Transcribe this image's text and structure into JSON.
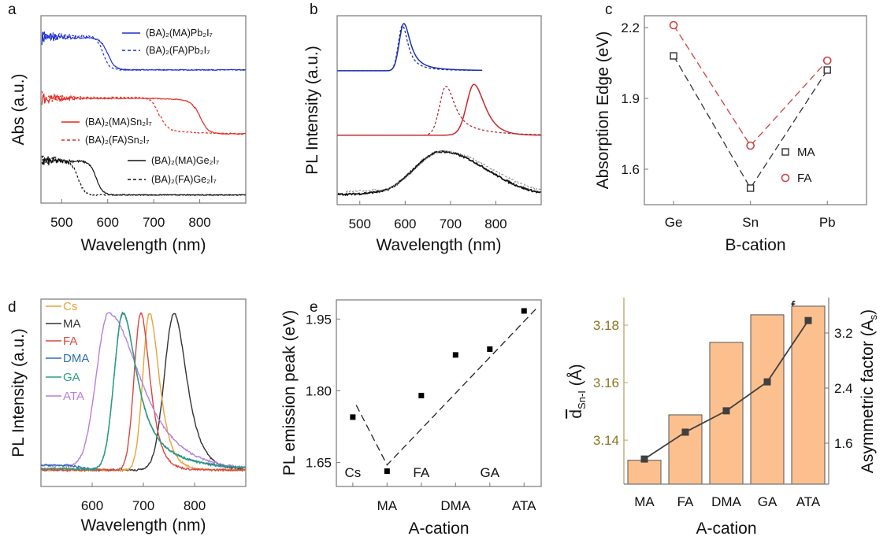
{
  "figure": {
    "panel_labels": [
      "a",
      "b",
      "c",
      "d",
      "e",
      "f"
    ]
  },
  "chart_data": [
    {
      "panel": "a",
      "type": "line",
      "xlabel": "Wavelength (nm)",
      "ylabel": "Abs (a.u.)",
      "xlim": [
        455,
        900
      ],
      "xticks": [
        500,
        600,
        700,
        800
      ],
      "series": [
        {
          "name": "(BA)₂(MA)Pb₂I₇",
          "color": "#1f2fd0",
          "style": "solid",
          "absorption_edge_nm": 600
        },
        {
          "name": "(BA)₂(FA)Pb₂I₇",
          "color": "#1f2fd0",
          "style": "dashed",
          "absorption_edge_nm": 590
        },
        {
          "name": "(BA)₂(MA)Sn₂I₇",
          "color": "#e8261e",
          "style": "solid",
          "absorption_edge_nm": 800
        },
        {
          "name": "(BA)₂(FA)Sn₂I₇",
          "color": "#e8261e",
          "style": "dashed",
          "absorption_edge_nm": 712
        },
        {
          "name": "(BA)₂(MA)Ge₂I₇",
          "color": "#111111",
          "style": "solid",
          "absorption_edge_nm": 575
        },
        {
          "name": "(BA)₂(FA)Ge₂I₇",
          "color": "#111111",
          "style": "dashed",
          "absorption_edge_nm": 535
        }
      ]
    },
    {
      "panel": "b",
      "type": "line",
      "xlabel": "Wavelength (nm)",
      "ylabel": "PL Intensity (a.u.)",
      "xlim": [
        450,
        900
      ],
      "xticks": [
        500,
        600,
        700,
        800
      ],
      "series": [
        {
          "color": "#1f2fb0",
          "style": "solid",
          "peak_nm": 597
        },
        {
          "color": "#1f2fb0",
          "style": "dashed",
          "peak_nm": 594
        },
        {
          "color": "#c8282a",
          "style": "solid",
          "peak_nm": 752
        },
        {
          "color": "#a83040",
          "style": "dashed",
          "peak_nm": 690
        },
        {
          "color": "#111111",
          "style": "solid",
          "peak_nm": 680
        },
        {
          "color": "#888888",
          "style": "dashed",
          "peak_nm": 685
        }
      ]
    },
    {
      "panel": "c",
      "type": "scatter",
      "xlabel": "B-cation",
      "ylabel": "Absorption Edge (eV)",
      "categories": [
        "Ge",
        "Sn",
        "Pb"
      ],
      "ylim": [
        1.45,
        2.25
      ],
      "yticks": [
        "1.6",
        "1.9",
        "2.2"
      ],
      "legend": "right",
      "series": [
        {
          "name": "MA",
          "values": [
            2.08,
            1.52,
            2.02
          ],
          "color": "#333333",
          "marker": "square"
        },
        {
          "name": "FA",
          "values": [
            2.21,
            1.7,
            2.06
          ],
          "color": "#d04040",
          "marker": "circle"
        }
      ]
    },
    {
      "panel": "d",
      "type": "line",
      "xlabel": "Wavelength (nm)",
      "ylabel": "PL Intensity (a.u.)",
      "xlim": [
        500,
        900
      ],
      "xticks": [
        600,
        700,
        800
      ],
      "legend": "top-left",
      "series": [
        {
          "name": "Cs",
          "color": "#e8a33a",
          "peak_nm": 712
        },
        {
          "name": "MA",
          "color": "#333333",
          "peak_nm": 760
        },
        {
          "name": "FA",
          "color": "#d9463f",
          "peak_nm": 695
        },
        {
          "name": "DMA",
          "color": "#2f6fb5",
          "peak_nm": 660
        },
        {
          "name": "GA",
          "color": "#2aa07a",
          "peak_nm": 660
        },
        {
          "name": "ATA",
          "color": "#b77ee0",
          "peak_nm": 632
        }
      ]
    },
    {
      "panel": "e",
      "type": "scatter",
      "xlabel": "A-cation",
      "ylabel": "PL emission peak (eV)",
      "categories": [
        "Cs",
        "MA",
        "FA",
        "DMA",
        "GA",
        "ATA"
      ],
      "values": [
        1.745,
        1.632,
        1.79,
        1.875,
        1.887,
        1.967
      ],
      "ylim": [
        1.6,
        1.99
      ],
      "yticks": [
        "1.65",
        "1.80",
        "1.95"
      ],
      "guide_line": [
        [
          0.1,
          1.77
        ],
        [
          1.0,
          1.645
        ],
        [
          5.4,
          1.975
        ]
      ]
    },
    {
      "panel": "f",
      "type": "bar",
      "xlabel": "A-cation",
      "ylabel_left": {
        "main": "d",
        "sub": "Sn-I",
        "unit": " (Å)"
      },
      "ylabel_right": {
        "main": "Asymmetric factor (A",
        "sub": "s",
        "end": ")"
      },
      "categories": [
        "MA",
        "FA",
        "DMA",
        "GA",
        "ATA"
      ],
      "bar_values": [
        3.133,
        3.1488,
        3.174,
        3.1836,
        3.1866
      ],
      "line_values": [
        1.37,
        1.76,
        2.07,
        2.49,
        3.38
      ],
      "ylim_left": [
        3.1247,
        3.1896
      ],
      "yticks_left": [
        "3.14",
        "3.16",
        "3.18"
      ],
      "ylim_right": [
        1.006,
        3.714
      ],
      "yticks_right": [
        "1.6",
        "2.4",
        "3.2"
      ],
      "bar_color": "#fbc08e",
      "line_color": "#404040",
      "left_axis_color": "#8b7320"
    }
  ]
}
